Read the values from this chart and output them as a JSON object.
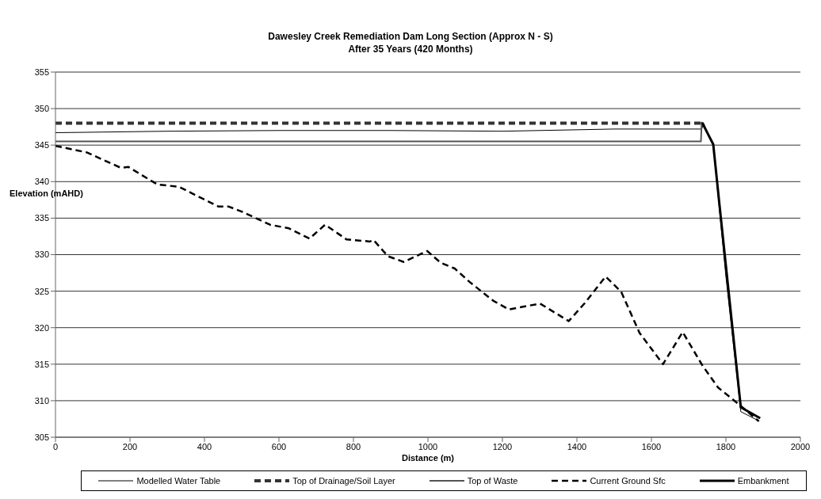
{
  "chart_data": {
    "type": "line",
    "title": "Dawesley Creek Remediation Dam Long Section (Approx N - S)",
    "subtitle": "After 35 Years (420 Months)",
    "xlabel": "Distance (m)",
    "ylabel": "Elevation (mAHD)",
    "xlim": [
      0,
      2000
    ],
    "xticks": [
      0,
      200,
      400,
      600,
      800,
      1000,
      1200,
      1400,
      1600,
      1800,
      2000
    ],
    "ylim": [
      305,
      355
    ],
    "yticks": [
      305,
      310,
      315,
      320,
      325,
      330,
      335,
      340,
      345,
      350,
      355
    ],
    "grid": "y",
    "legend": "bottom",
    "marker": "none",
    "series": [
      {
        "name": "Modelled Water Table",
        "color": "#000000",
        "line_style": "solid",
        "x": [
          0,
          300,
          600,
          900,
          1200,
          1500,
          1735,
          1740,
          1766,
          1800,
          1840,
          1890
        ],
        "values": [
          346.7,
          346.9,
          347.0,
          347.0,
          346.9,
          347.2,
          347.2,
          348.0,
          345.0,
          327.0,
          308.5,
          307.2
        ]
      },
      {
        "name": "Top of Drainage/Soil Layer",
        "color": "#333333",
        "line_style": "dashed",
        "x": [
          0,
          1735
        ],
        "values": [
          348.0,
          348.0
        ]
      },
      {
        "name": "Top of Waste",
        "color": "#555555",
        "line_style": "solid",
        "x": [
          0,
          1733,
          1735
        ],
        "values": [
          345.5,
          345.5,
          348.2
        ]
      },
      {
        "name": "Current Ground Sfc",
        "color": "#000000",
        "line_style": "dashed",
        "x": [
          0,
          84,
          175,
          196,
          274,
          331,
          437,
          464,
          500,
          576,
          627,
          682,
          724,
          781,
          844,
          854,
          892,
          935,
          998,
          1034,
          1072,
          1111,
          1175,
          1217,
          1301,
          1378,
          1420,
          1477,
          1519,
          1568,
          1631,
          1684,
          1736,
          1779,
          1835,
          1888
        ],
        "values": [
          344.9,
          344.0,
          341.9,
          342.0,
          339.6,
          339.3,
          336.6,
          336.6,
          335.9,
          334.1,
          333.6,
          332.2,
          334.1,
          332.1,
          331.8,
          332.0,
          329.8,
          329.0,
          330.5,
          328.9,
          328.1,
          326.3,
          323.7,
          322.5,
          323.3,
          320.9,
          323.3,
          327.0,
          324.9,
          319.3,
          315.0,
          319.4,
          314.9,
          311.8,
          309.5,
          307.2
        ]
      },
      {
        "name": "Embankment",
        "color": "#000000",
        "line_style": "solid",
        "x": [
          1736,
          1766,
          1783,
          1840,
          1892
        ],
        "values": [
          348.1,
          345.1,
          336.7,
          309.1,
          307.6
        ]
      }
    ]
  }
}
